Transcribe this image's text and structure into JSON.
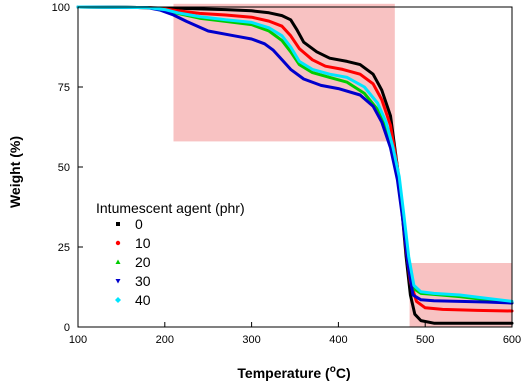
{
  "chart_data": {
    "type": "line",
    "xlabel": "Temperature (",
    "xlabel_degree": "o",
    "xlabel_unit": "C)",
    "ylabel": "Weight (%)",
    "xlim": [
      100,
      600
    ],
    "ylim": [
      0,
      100
    ],
    "x_ticks": [
      100,
      200,
      300,
      400,
      500,
      600
    ],
    "y_ticks": [
      0,
      25,
      50,
      75,
      100
    ],
    "grid": false,
    "legend": {
      "title": "Intumescent agent (phr)",
      "position": "center-left"
    },
    "highlight_regions": [
      {
        "x": [
          210,
          465
        ],
        "y": [
          58,
          101
        ],
        "color": "#f8c2c2"
      },
      {
        "x": [
          482,
          600
        ],
        "y": [
          0,
          20
        ],
        "color": "#f8c2c2"
      }
    ],
    "series": [
      {
        "name": "0",
        "color": "#000000",
        "x": [
          100,
          180,
          200,
          215,
          240,
          270,
          300,
          320,
          335,
          345,
          352,
          360,
          375,
          390,
          410,
          425,
          440,
          450,
          460,
          468,
          472,
          478,
          483,
          488,
          495,
          510,
          540,
          570,
          600
        ],
        "y": [
          100,
          99.8,
          99.6,
          99.6,
          99.4,
          99.2,
          98.8,
          98.2,
          97.3,
          96,
          93,
          89,
          86,
          84,
          83,
          82,
          79,
          74,
          66,
          50,
          40,
          22,
          10,
          4,
          2,
          1.2,
          1.2,
          1.2,
          1.2
        ]
      },
      {
        "name": "10",
        "color": "#ff0000",
        "x": [
          100,
          180,
          200,
          215,
          240,
          270,
          300,
          320,
          335,
          345,
          355,
          370,
          385,
          405,
          425,
          440,
          450,
          460,
          468,
          472,
          478,
          483,
          490,
          500,
          520,
          560,
          600
        ],
        "y": [
          100,
          99.8,
          99.4,
          98.8,
          98,
          97.5,
          96.8,
          95.6,
          94,
          91,
          87,
          83.5,
          81.5,
          80.5,
          79,
          76,
          71,
          63,
          50,
          40,
          24,
          14,
          8,
          6,
          5.5,
          5.2,
          5
        ]
      },
      {
        "name": "20",
        "color": "#00cc00",
        "x": [
          100,
          180,
          200,
          215,
          240,
          270,
          300,
          320,
          335,
          345,
          355,
          370,
          390,
          410,
          430,
          445,
          455,
          463,
          470,
          475,
          481,
          487,
          495,
          510,
          540,
          570,
          600
        ],
        "y": [
          100,
          99.8,
          99.2,
          98,
          96.5,
          95.5,
          94.5,
          92.5,
          89.5,
          86,
          82,
          79.5,
          78,
          76.5,
          73,
          68,
          62,
          54,
          45,
          34,
          20,
          12,
          10.5,
          10.2,
          9.5,
          8.5,
          7.5
        ]
      },
      {
        "name": "30",
        "color": "#0000cc",
        "x": [
          100,
          180,
          195,
          210,
          225,
          250,
          280,
          300,
          315,
          325,
          335,
          345,
          360,
          380,
          400,
          425,
          440,
          450,
          460,
          468,
          474,
          480,
          486,
          495,
          510,
          540,
          570,
          600
        ],
        "y": [
          100,
          99.8,
          99,
          97.5,
          95.5,
          92.5,
          91,
          90,
          88.5,
          86.5,
          83.5,
          80.5,
          77.5,
          75.5,
          74.5,
          72.5,
          69,
          64,
          56,
          46,
          34,
          20,
          10,
          8.5,
          8.2,
          8,
          7.8,
          7.5
        ]
      },
      {
        "name": "40",
        "color": "#00e5ff",
        "x": [
          100,
          180,
          200,
          215,
          240,
          270,
          300,
          320,
          335,
          345,
          355,
          370,
          390,
          410,
          430,
          445,
          455,
          463,
          470,
          475,
          481,
          487,
          495,
          510,
          540,
          570,
          600
        ],
        "y": [
          100,
          99.8,
          99.2,
          98.2,
          97,
          96,
          95.2,
          93.5,
          91,
          87.5,
          83,
          80.5,
          79,
          78,
          75,
          70,
          64,
          56,
          47,
          36,
          22,
          13,
          11,
          10.5,
          10,
          9,
          8
        ]
      }
    ]
  }
}
